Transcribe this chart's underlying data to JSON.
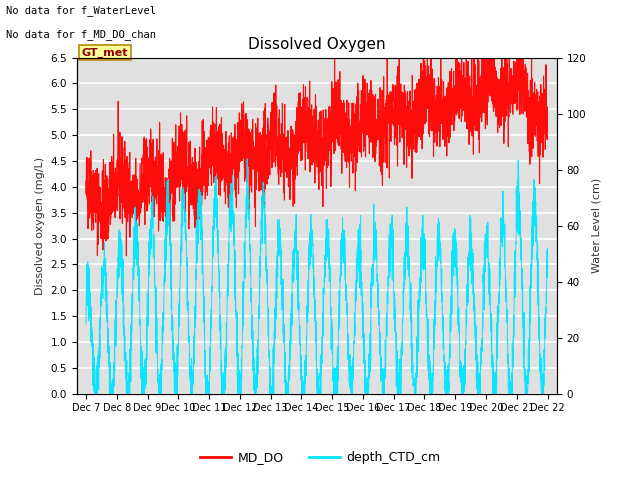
{
  "title": "Dissolved Oxygen",
  "ylabel_left": "Dissolved oxygen (mg/L)",
  "ylabel_right": "Water Level (cm)",
  "ylim_left": [
    0.0,
    6.5
  ],
  "ylim_right": [
    0,
    120
  ],
  "x_tick_labels": [
    "Dec 7",
    "Dec 8",
    "Dec 9",
    "Dec 10",
    "Dec 11",
    "Dec 12",
    "Dec 13",
    "Dec 14",
    "Dec 15",
    "Dec 16",
    "Dec 17",
    "Dec 18",
    "Dec 19",
    "Dec 20",
    "Dec 21",
    "Dec 22"
  ],
  "legend_label1": "MD_DO",
  "legend_label2": "depth_CTD_cm",
  "color_mdo": "#ff0000",
  "color_ctd": "#00e5ff",
  "no_data_text1": "No data for f_WaterLevel",
  "no_data_text2": "No data for f_MD_DO_chan",
  "gt_met_label": "GT_met",
  "background_color": "#e0e0e0",
  "title_fontsize": 11,
  "legend_box_color": "#ffff99",
  "yticks_left": [
    0.0,
    0.5,
    1.0,
    1.5,
    2.0,
    2.5,
    3.0,
    3.5,
    4.0,
    4.5,
    5.0,
    5.5,
    6.0,
    6.5
  ],
  "yticks_right": [
    0,
    20,
    40,
    60,
    80,
    100,
    120
  ]
}
